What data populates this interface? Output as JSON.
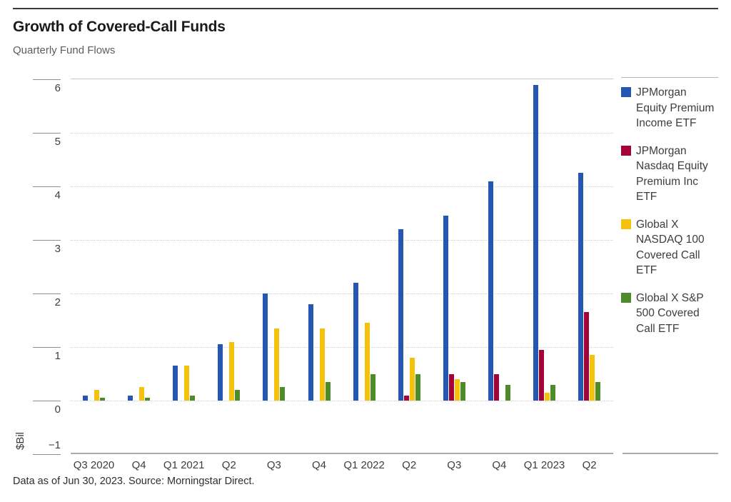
{
  "header": {
    "title": "Growth of Covered-Call Funds",
    "subtitle": "Quarterly Fund Flows"
  },
  "footer": {
    "note": "Data as of Jun 30, 2023. Source: Morningstar Direct."
  },
  "y_axis": {
    "unit_label": "$Bil",
    "tick_labels": [
      "6",
      "5",
      "4",
      "3",
      "2",
      "1",
      "0",
      "−1"
    ],
    "tick_values": [
      6,
      5,
      4,
      3,
      2,
      1,
      0,
      -1
    ]
  },
  "chart_data": {
    "type": "bar",
    "title": "Growth of Covered-Call Funds",
    "subtitle": "Quarterly Fund Flows",
    "xlabel": "",
    "ylabel": "$Bil",
    "ylim": [
      -1,
      6
    ],
    "grid": "horizontal-dotted",
    "legend_position": "right",
    "categories": [
      "Q3 2020",
      "Q4",
      "Q1 2021",
      "Q2",
      "Q3",
      "Q4",
      "Q1 2022",
      "Q2",
      "Q3",
      "Q4",
      "Q1 2023",
      "Q2"
    ],
    "series": [
      {
        "name": "JPMorgan Equity Premium Income ETF",
        "color": "#2557b2",
        "values": [
          0.1,
          0.1,
          0.65,
          1.05,
          2.0,
          1.8,
          2.2,
          3.2,
          3.45,
          4.1,
          5.9,
          4.25
        ]
      },
      {
        "name": "JPMorgan Nasdaq Equity Premium Inc ETF",
        "color": "#a4023b",
        "values": [
          null,
          null,
          null,
          null,
          null,
          null,
          null,
          0.1,
          0.5,
          0.5,
          0.95,
          1.65
        ]
      },
      {
        "name": "Global X NASDAQ 100 Covered Call ETF",
        "color": "#f4c20a",
        "values": [
          0.2,
          0.25,
          0.65,
          1.1,
          1.35,
          1.35,
          1.45,
          0.8,
          0.4,
          0,
          0.15,
          0.85
        ]
      },
      {
        "name": "Global X S&P 500 Covered Call ETF",
        "color": "#4e8b2b",
        "values": [
          0.05,
          0.05,
          0.1,
          0.2,
          0.25,
          0.35,
          0.5,
          0.5,
          0.35,
          0.3,
          0.3,
          0.35
        ]
      }
    ],
    "source": "Data as of Jun 30, 2023. Source: Morningstar Direct."
  },
  "legend": {
    "items": [
      {
        "color": "#2557b2",
        "lines": [
          "JPMorgan",
          "Equity Premium",
          "Income ETF"
        ]
      },
      {
        "color": "#a4023b",
        "lines": [
          "JPMorgan",
          "Nasdaq Equity",
          "Premium Inc",
          "ETF"
        ]
      },
      {
        "color": "#f4c20a",
        "lines": [
          "Global X",
          "NASDAQ 100",
          "Covered Call",
          "ETF"
        ]
      },
      {
        "color": "#4e8b2b",
        "lines": [
          "Global X S&P",
          "500 Covered",
          "Call ETF"
        ]
      }
    ]
  }
}
